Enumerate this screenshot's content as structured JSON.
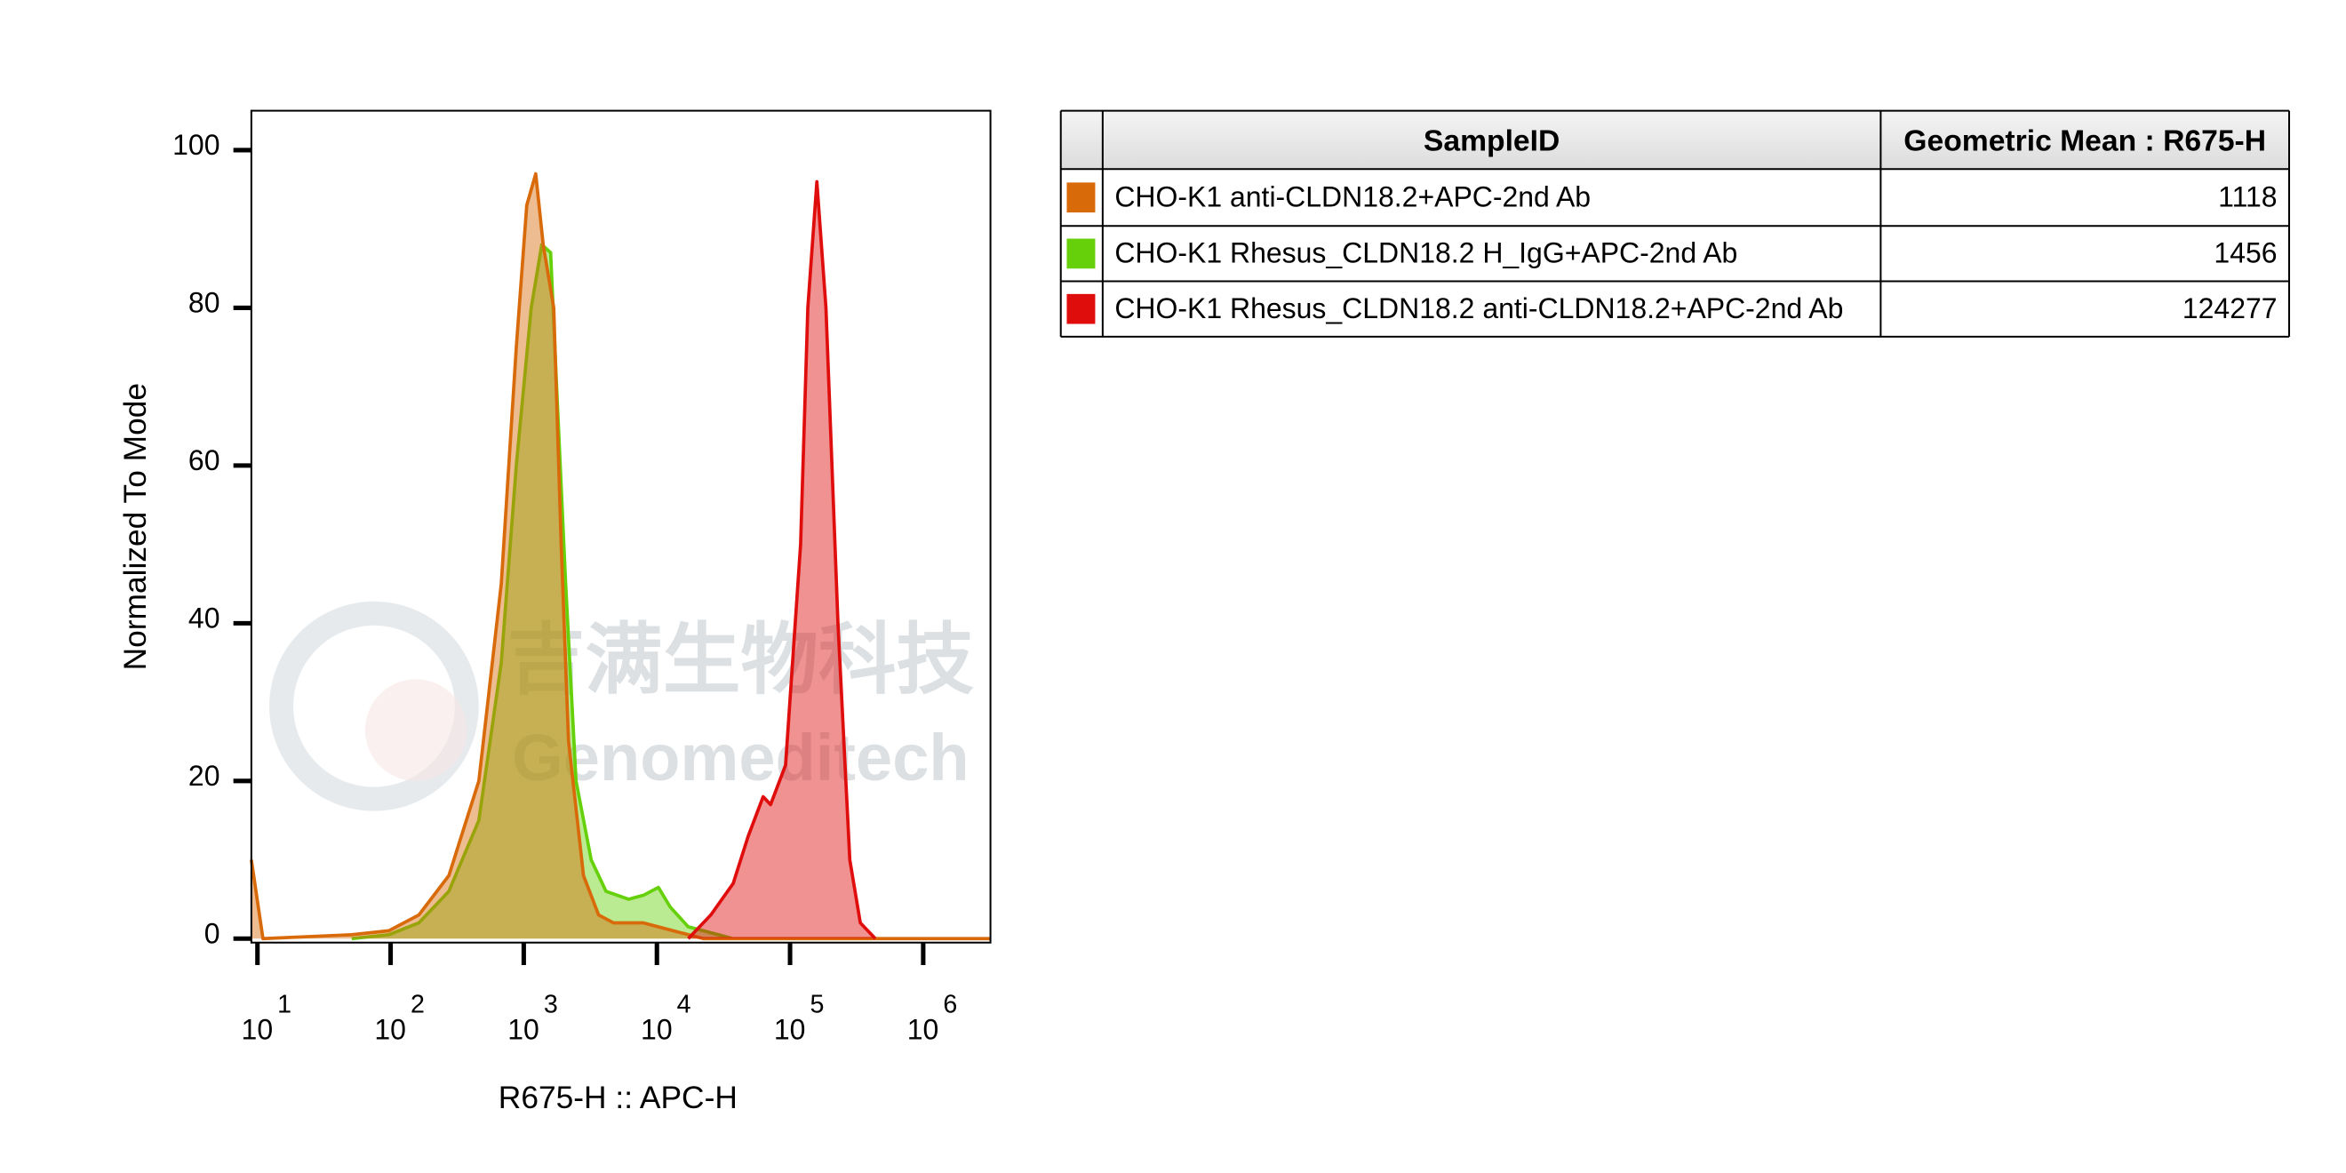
{
  "chart_data": {
    "type": "area",
    "xscale": "log",
    "x_label": "R675-H :: APC-H",
    "y_label": "Normalized To Mode",
    "xlim": [
      9,
      3200000
    ],
    "ylim": [
      -0.5,
      105
    ],
    "xticks": [
      {
        "value": 10,
        "label": "10",
        "sup": "1"
      },
      {
        "value": 100,
        "label": "10",
        "sup": "2"
      },
      {
        "value": 1000,
        "label": "10",
        "sup": "3"
      },
      {
        "value": 10000,
        "label": "10",
        "sup": "4"
      },
      {
        "value": 100000,
        "label": "10",
        "sup": "5"
      },
      {
        "value": 1000000,
        "label": "10",
        "sup": "6"
      }
    ],
    "yticks": [
      0,
      20,
      40,
      60,
      80,
      100
    ],
    "series": [
      {
        "name": "CHO-K1 Rhesus_CLDN18.2 H_IgG+APC-2nd Ab",
        "color": "#66d10a",
        "x": [
          51,
          97,
          163,
          274,
          460,
          678,
          879,
          1138,
          1365,
          1592,
          1766,
          2064,
          2470,
          3210,
          4150,
          6120,
          7920,
          10260,
          12600,
          17200,
          28900,
          37400
        ],
        "values": [
          0,
          0.5,
          2,
          6,
          15,
          35,
          60,
          80,
          88,
          87,
          70,
          45,
          20,
          10,
          6,
          5,
          5.5,
          6.5,
          4,
          1.5,
          0.5,
          0
        ]
      },
      {
        "name": "CHO-K1 anti-CLDN18.2+APC-2nd Ab",
        "color": "#d86a0a",
        "x": [
          9,
          11,
          51,
          97,
          163,
          274,
          460,
          678,
          879,
          1053,
          1230,
          1400,
          1680,
          1910,
          2170,
          2810,
          3650,
          4720,
          7920,
          13300,
          22300,
          3200000
        ],
        "values": [
          10,
          0,
          0.5,
          1,
          3,
          8,
          20,
          45,
          75,
          93,
          97,
          88,
          80,
          50,
          25,
          8,
          3,
          2,
          2,
          1,
          0,
          0
        ]
      },
      {
        "name": "CHO-K1 Rhesus_CLDN18.2 anti-CLDN18.2+APC-2nd Ab",
        "color": "#e00d0d",
        "x": [
          17200,
          25400,
          37400,
          48500,
          62800,
          71400,
          92500,
          120000,
          136000,
          159000,
          186000,
          229000,
          281000,
          337000,
          437000
        ],
        "values": [
          0,
          3,
          7,
          13,
          18,
          17,
          22,
          50,
          80,
          96,
          80,
          40,
          10,
          2,
          0
        ]
      }
    ],
    "legend_table": {
      "headers": [
        "SampleID",
        "Geometric Mean : R675-H"
      ],
      "order": [
        1,
        0,
        2
      ],
      "geometric_means": [
        1456,
        1118,
        124277
      ]
    },
    "watermark": {
      "text_cn": "吉满生物科技",
      "text_en": "Genomeditech"
    }
  }
}
